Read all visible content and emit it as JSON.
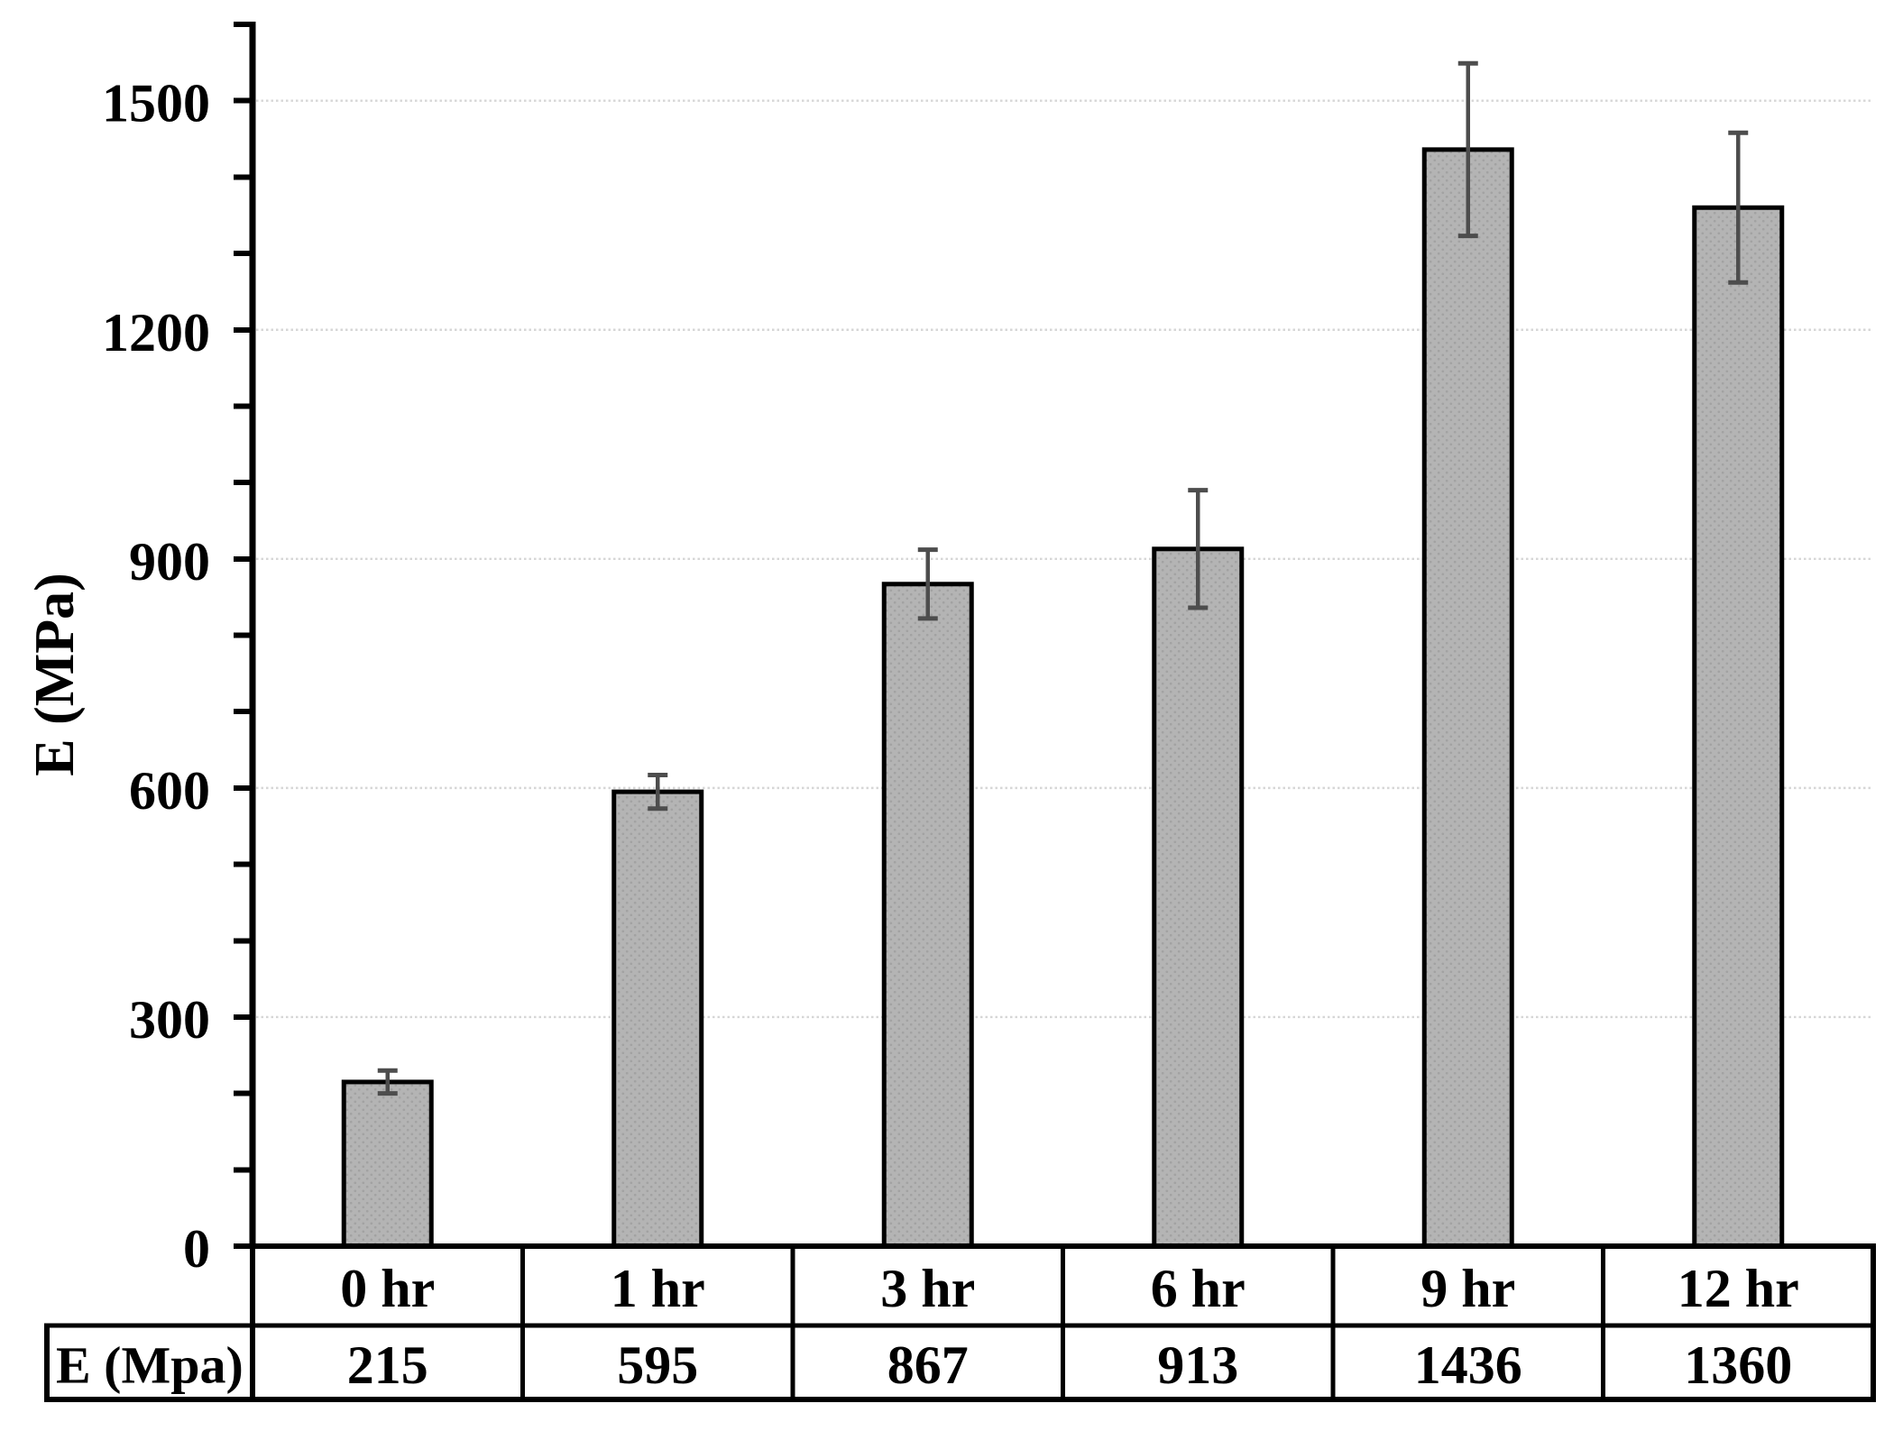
{
  "chart_data": {
    "type": "bar",
    "title": "",
    "xlabel": "",
    "ylabel": "E (MPa)",
    "categories": [
      "0 hr",
      "1 hr",
      "3 hr",
      "6 hr",
      "9 hr",
      "12 hr"
    ],
    "series": [
      {
        "name": "E (Mpa)",
        "values": [
          215,
          595,
          867,
          913,
          1436,
          1360
        ],
        "errors": [
          15,
          22,
          45,
          77,
          113,
          98
        ]
      }
    ],
    "ylim": [
      0,
      1600
    ],
    "yticks": [
      0,
      300,
      600,
      900,
      1200,
      1500
    ],
    "minor_tick_step": 100,
    "grid": "horizontal-dotted",
    "legend": "none",
    "data_table": {
      "row_header": "E (Mpa)",
      "row_values": [
        "215",
        "595",
        "867",
        "913",
        "1436",
        "1360"
      ]
    },
    "colors": {
      "background": "#ffffff",
      "bar_fill": "#b4b4b4",
      "bar_dot": "#a2a2a2",
      "bar_border": "#000000",
      "error_bar": "#4d4d4d",
      "gridline": "#d6d6d6",
      "axis": "#000000",
      "text": "#000000"
    }
  }
}
